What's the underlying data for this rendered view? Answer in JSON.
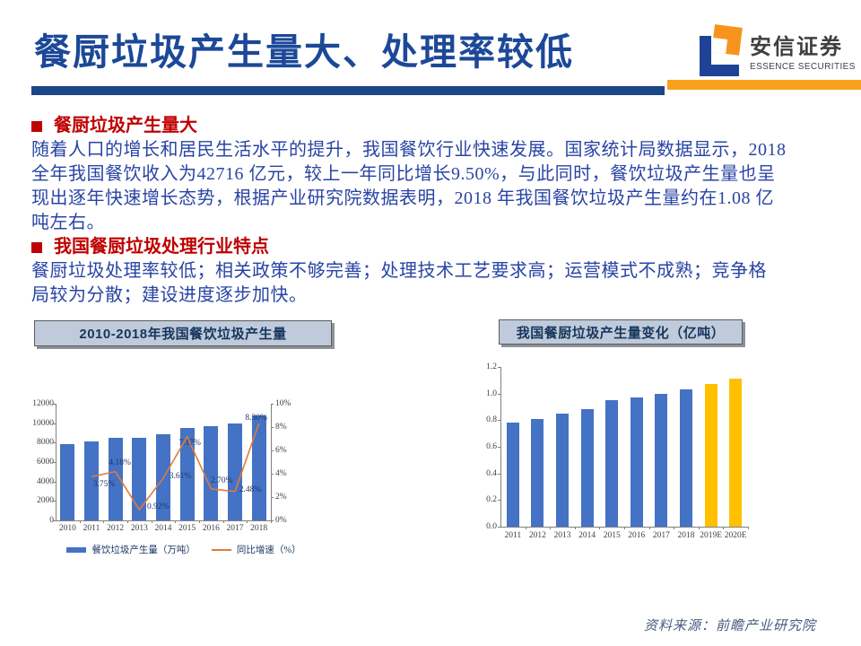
{
  "header": {
    "title": "餐厨垃圾产生量大、处理率较低",
    "logo": {
      "cn": "安信证券",
      "en": "ESSENCE SECURITIES"
    }
  },
  "theme": {
    "title_blue": "#1C4898",
    "divider_blue": "#1B4688",
    "divider_orange": "#F9A11B",
    "heading_red": "#C00000",
    "body_blue": "#2944A4",
    "chart_title_box_bg": "#BFCBDB",
    "bar_blue": "#4472C4",
    "bar_yellow": "#FFC000",
    "line_orange": "#E07B39"
  },
  "body": {
    "sections": [
      {
        "heading": "餐厨垃圾产生量大",
        "lines": [
          "随着人口的增长和居民生活水平的提升，我国餐饮行业快速发展。国家统计局数据显示，2018",
          "全年我国餐饮收入为42716 亿元，较上一年同比增长9.50%，与此同时，餐饮垃圾产生量也呈",
          "现出逐年快速增长态势，根据产业研究院数据表明，2018 年我国餐饮垃圾产生量约在1.08 亿",
          "吨左右。"
        ]
      },
      {
        "heading": "我国餐厨垃圾处理行业特点",
        "lines": [
          "餐厨垃圾处理率较低；相关政策不够完善；处理技术工艺要求高；运营模式不成熟；竞争格",
          "局较为分散；建设进度逐步加快。"
        ]
      }
    ]
  },
  "chart_data": [
    {
      "type": "bar",
      "title": "2010-2018年我国餐饮垃圾产生量",
      "categories": [
        "2010",
        "2011",
        "2012",
        "2013",
        "2014",
        "2015",
        "2016",
        "2017",
        "2018"
      ],
      "series": [
        {
          "name": "餐饮垃圾产生量（万吨）",
          "kind": "bar",
          "axis": "left",
          "color": "#4472C4",
          "values": [
            7823,
            8117,
            8456,
            8534,
            8842,
            9476,
            9732,
            9973,
            10800
          ]
        },
        {
          "name": "同比增速（%）",
          "kind": "line",
          "axis": "right",
          "color": "#E07B39",
          "values": [
            null,
            3.75,
            4.18,
            0.92,
            3.61,
            7.17,
            2.7,
            2.48,
            8.3
          ],
          "point_labels": [
            "",
            "3.75%",
            "4.18%",
            "0.92%",
            "3.61%",
            "7.17%",
            "2.70%",
            "2.48%",
            "8.30%"
          ]
        }
      ],
      "left_axis": {
        "ticks": [
          "0",
          "2000",
          "4000",
          "6000",
          "8000",
          "10000",
          "12000"
        ],
        "max": 12000
      },
      "right_axis": {
        "ticks": [
          "0%",
          "2%",
          "4%",
          "6%",
          "8%",
          "10%"
        ],
        "max": 10
      },
      "legend_position": "bottom",
      "grid": false
    },
    {
      "type": "bar",
      "title": "我国餐厨垃圾产生量变化（亿吨）",
      "categories": [
        "2011",
        "2012",
        "2013",
        "2014",
        "2015",
        "2016",
        "2017",
        "2018",
        "2019E",
        "2020E"
      ],
      "values": [
        0.78,
        0.81,
        0.85,
        0.88,
        0.95,
        0.97,
        1.0,
        1.03,
        1.07,
        1.11
      ],
      "colors": {
        "actual": "#4472C4",
        "forecast": "#FFC000"
      },
      "forecast_start_index": 8,
      "y_axis": {
        "ticks": [
          "0.0",
          "0.2",
          "0.4",
          "0.6",
          "0.8",
          "1.0",
          "1.2"
        ],
        "max": 1.2
      },
      "grid": false
    }
  ],
  "footer": {
    "source": "资料来源：前瞻产业研究院"
  }
}
